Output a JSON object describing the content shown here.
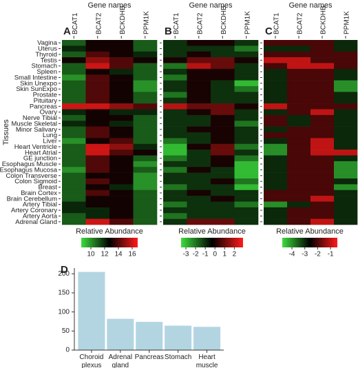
{
  "chart_data": [
    {
      "type": "heatmap",
      "panel": "A",
      "x_title": "Gene names",
      "y_title": "Tissues",
      "colorbar_title": "Relative Abundance",
      "categories": [
        "BCAT1",
        "BCAT2",
        "BCKDHB",
        "PPM1K"
      ],
      "rows": [
        "Vagina",
        "Uterus",
        "Thyroid",
        "Testis",
        "Stomach",
        "Spleen",
        "Small Intestine",
        "Skin Unexpo",
        "Skin SunExpo",
        "Prostate",
        "Pituitary",
        "Pancreas",
        "Ovary",
        "Nerve Tibial",
        "Muscle Skeletal",
        "Minor Salivary",
        "Lung",
        "Liver",
        "Heart Ventricle",
        "Heart Atrial",
        "GE junction",
        "Esophagus Muscle",
        "Esophagus Mucosa",
        "Colon Transverse",
        "Colon Sigmoid",
        "Breast",
        "Brain Cortex",
        "Brain Cerebellum",
        "Artery Tibial",
        "Artery Coronary",
        "Artery Aorta",
        "Adrenal Gland"
      ],
      "values": [
        [
          11,
          13,
          13,
          11
        ],
        [
          12,
          13,
          13,
          11
        ],
        [
          11,
          14,
          13,
          12
        ],
        [
          13,
          15,
          14,
          13
        ],
        [
          11,
          16,
          14,
          11
        ],
        [
          11,
          13,
          12,
          11
        ],
        [
          10,
          14,
          13,
          11
        ],
        [
          11,
          14,
          13,
          10
        ],
        [
          11,
          14,
          13,
          10
        ],
        [
          11,
          14,
          13,
          11
        ],
        [
          11,
          14,
          13,
          11
        ],
        [
          16,
          16,
          15,
          14
        ],
        [
          12,
          13,
          12,
          12
        ],
        [
          11,
          13,
          13,
          11
        ],
        [
          12,
          13,
          12,
          11
        ],
        [
          11,
          14,
          13,
          11
        ],
        [
          11,
          14,
          13,
          11
        ],
        [
          10,
          13,
          14,
          11
        ],
        [
          11,
          16,
          15,
          12
        ],
        [
          11,
          16,
          14,
          13
        ],
        [
          11,
          14,
          13,
          11
        ],
        [
          11,
          14,
          13,
          10
        ],
        [
          10,
          14,
          13,
          11
        ],
        [
          11,
          13,
          13,
          10
        ],
        [
          11,
          14,
          13,
          10
        ],
        [
          11,
          13,
          12,
          10
        ],
        [
          11,
          14,
          13,
          11
        ],
        [
          11,
          13,
          13,
          11
        ],
        [
          12,
          13,
          13,
          11
        ],
        [
          12,
          12,
          13,
          11
        ],
        [
          11,
          12,
          13,
          11
        ],
        [
          11,
          16,
          14,
          11
        ]
      ],
      "zlim": [
        8.6,
        16.8
      ],
      "zticks": [
        10,
        12,
        14,
        16
      ],
      "colors": [
        "#3ddc3d",
        "#000000",
        "#ff1a1a"
      ]
    },
    {
      "type": "heatmap",
      "panel": "B",
      "x_title": "Gene names",
      "colorbar_title": "Relative Abundance",
      "categories": [
        "BCAT1",
        "BCAT2",
        "BCKDHB",
        "PPM1K"
      ],
      "values": [
        [
          -1,
          0,
          0,
          -1
        ],
        [
          -1,
          -1,
          -1,
          -2
        ],
        [
          -1,
          0,
          -1,
          -1
        ],
        [
          0,
          1,
          1,
          0
        ],
        [
          -2,
          2,
          1,
          -1
        ],
        [
          -1,
          0,
          0,
          -1
        ],
        [
          -2,
          0,
          0,
          -1
        ],
        [
          -1,
          0,
          -1,
          -3
        ],
        [
          -1,
          0,
          -1,
          -2
        ],
        [
          -2,
          0,
          -1,
          -1
        ],
        [
          -1,
          0,
          -1,
          -1
        ],
        [
          2,
          1,
          1,
          0
        ],
        [
          -1,
          0,
          1,
          -1
        ],
        [
          -1,
          -1,
          0,
          -1
        ],
        [
          -1,
          -1,
          0,
          -2
        ],
        [
          -1,
          0,
          0,
          -1
        ],
        [
          -1,
          -1,
          0,
          -1
        ],
        [
          -2,
          -1,
          0,
          -1
        ],
        [
          -3,
          0,
          1,
          -2
        ],
        [
          -3,
          -1,
          1,
          -1
        ],
        [
          -2,
          -1,
          0,
          -2
        ],
        [
          -1,
          -1,
          0,
          -3
        ],
        [
          -2,
          0,
          -1,
          -3
        ],
        [
          -1,
          -1,
          -1,
          -3
        ],
        [
          -1,
          -1,
          0,
          -2
        ],
        [
          -2,
          -1,
          -1,
          -3
        ],
        [
          -1,
          0,
          -1,
          -1
        ],
        [
          -1,
          -1,
          0,
          -1
        ],
        [
          -2,
          -1,
          -1,
          -2
        ],
        [
          -1,
          -1,
          -1,
          -1
        ],
        [
          -2,
          -1,
          -1,
          -1
        ],
        [
          -1,
          1,
          1,
          -1
        ]
      ],
      "zlim": [
        -3.5,
        2.9
      ],
      "zticks": [
        -3,
        -2,
        -1,
        0,
        1,
        2
      ],
      "colors": [
        "#3ddc3d",
        "#000000",
        "#ff1a1a"
      ]
    },
    {
      "type": "heatmap",
      "panel": "C",
      "x_title": "Gene names",
      "colorbar_title": "Relative Abundance",
      "categories": [
        "BCAT1",
        "BCAT2",
        "BCKDHB",
        "PPM1K"
      ],
      "values": [
        [
          -2,
          -2,
          -2,
          -3
        ],
        [
          -3,
          -3,
          -2,
          -3
        ],
        [
          -2,
          -2,
          -2,
          -2
        ],
        [
          -1,
          -1,
          -2,
          -2
        ],
        [
          -2,
          -1,
          -1,
          -2
        ],
        [
          -3,
          -2,
          -2,
          -3
        ],
        [
          -3,
          -2,
          -2,
          -3
        ],
        [
          -3,
          -2,
          -2,
          -4
        ],
        [
          -3,
          -2,
          -2,
          -4
        ],
        [
          -3,
          -2,
          -2,
          -3
        ],
        [
          -3,
          -2,
          -2,
          -3
        ],
        [
          -1,
          -2,
          -2,
          -2
        ],
        [
          -3,
          -2,
          -1,
          -3
        ],
        [
          -2,
          -3,
          -2,
          -3
        ],
        [
          -2,
          -3,
          -2,
          -3
        ],
        [
          -3,
          -2,
          -2,
          -3
        ],
        [
          -2,
          -2,
          -2,
          -3
        ],
        [
          -3,
          -2,
          -1,
          -3
        ],
        [
          -4,
          -2,
          -1,
          -3
        ],
        [
          -4,
          -2,
          -1,
          -1
        ],
        [
          -3,
          -2,
          -2,
          -3
        ],
        [
          -3,
          -2,
          -2,
          -4
        ],
        [
          -3,
          -2,
          -2,
          -4
        ],
        [
          -3,
          -2,
          -2,
          -4
        ],
        [
          -3,
          -2,
          -2,
          -3
        ],
        [
          -3,
          -2,
          -2,
          -4
        ],
        [
          -2,
          -2,
          -2,
          -3
        ],
        [
          -2,
          -2,
          -1,
          -3
        ],
        [
          -4,
          -3,
          -2,
          -3
        ],
        [
          -3,
          -2,
          -2,
          -3
        ],
        [
          -3,
          -2,
          -2,
          -3
        ],
        [
          -3,
          -2,
          -1,
          -3
        ]
      ],
      "zlim": [
        -4.75,
        -0.47
      ],
      "zticks": [
        -4,
        -3,
        -2,
        -1
      ],
      "colors": [
        "#3ddc3d",
        "#000000",
        "#ff1a1a"
      ]
    },
    {
      "type": "bar",
      "panel": "D",
      "categories": [
        "Choroid plexus",
        "Adrenal gland",
        "Pancreas",
        "Stomach",
        "Heart muscle"
      ],
      "values": [
        205,
        82,
        74,
        64,
        61
      ],
      "color": "#b3d5e2",
      "ylim": [
        0,
        215
      ],
      "yticks": [
        0,
        50,
        100,
        150,
        200
      ]
    }
  ]
}
